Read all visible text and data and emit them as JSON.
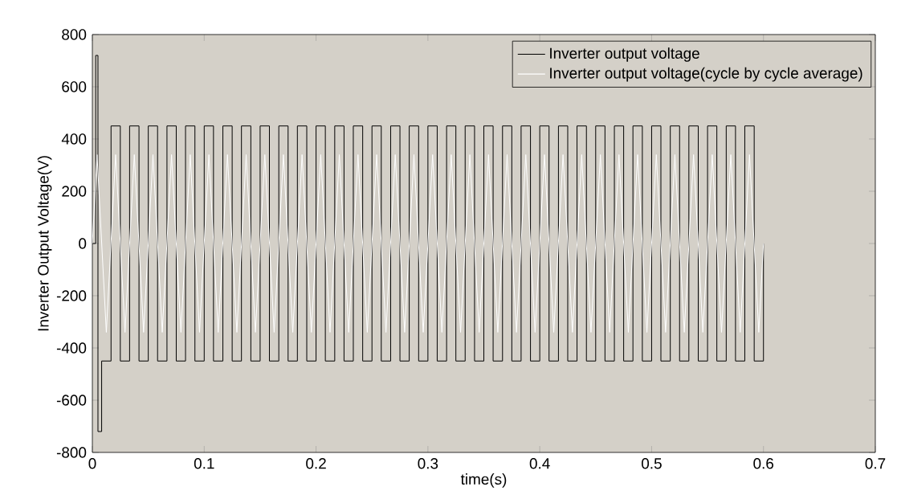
{
  "chart_data": {
    "type": "line",
    "xlabel": "time(s)",
    "ylabel": "Inverter Output Voltage(V)",
    "xlim": [
      0,
      0.7
    ],
    "ylim": [
      -800,
      800
    ],
    "xticks": [
      0,
      0.1,
      0.2,
      0.3,
      0.4,
      0.5,
      0.6,
      0.7
    ],
    "yticks": [
      -800,
      -600,
      -400,
      -200,
      0,
      200,
      400,
      600,
      800
    ],
    "grid": false,
    "legend": "top right",
    "marker": "none",
    "line_style": "solid",
    "series": [
      {
        "name": "Inverter output voltage",
        "type": "step",
        "color": "#000000",
        "x": [
          0,
          0.003,
          0.005,
          0.0083,
          0.0167,
          0.025,
          0.0333,
          0.0417,
          0.05,
          0.0583,
          0.0667,
          0.075,
          0.0833,
          0.0917,
          0.1,
          0.1083,
          0.1167,
          0.125,
          0.1333,
          0.1417,
          0.15,
          0.1583,
          0.1667,
          0.175,
          0.1833,
          0.1917,
          0.2,
          0.2083,
          0.2167,
          0.225,
          0.2333,
          0.2417,
          0.25,
          0.2583,
          0.2667,
          0.275,
          0.2833,
          0.2917,
          0.3,
          0.3083,
          0.3167,
          0.325,
          0.3333,
          0.3417,
          0.35,
          0.3583,
          0.3667,
          0.375,
          0.3833,
          0.3917,
          0.4,
          0.4083,
          0.4167,
          0.425,
          0.4333,
          0.4417,
          0.45,
          0.4583,
          0.4667,
          0.475,
          0.4833,
          0.4917,
          0.5,
          0.5083,
          0.5167,
          0.525,
          0.5333,
          0.5417,
          0.55,
          0.5583,
          0.5667,
          0.575,
          0.5833,
          0.5917,
          0.6
        ],
        "values": [
          0,
          720,
          -720,
          -450,
          450,
          -450,
          450,
          -450,
          450,
          -450,
          450,
          -450,
          450,
          -450,
          450,
          -450,
          450,
          -450,
          450,
          -450,
          450,
          -450,
          450,
          -450,
          450,
          -450,
          450,
          -450,
          450,
          -450,
          450,
          -450,
          450,
          -450,
          450,
          -450,
          450,
          -450,
          450,
          -450,
          450,
          -450,
          450,
          -450,
          450,
          -450,
          450,
          -450,
          450,
          -450,
          450,
          -450,
          450,
          -450,
          450,
          -450,
          450,
          -450,
          450,
          -450,
          450,
          -450,
          450,
          -450,
          450,
          -450,
          450,
          -450,
          450,
          -450,
          450,
          -450,
          450,
          -450,
          0
        ]
      },
      {
        "name": "Inverter output voltage(cycle by cycle average)",
        "color": "#ffffff",
        "x": [
          0,
          0.0042,
          0.0125,
          0.0208,
          0.0292,
          0.0375,
          0.0458,
          0.0542,
          0.0625,
          0.0708,
          0.0792,
          0.0875,
          0.0958,
          0.1042,
          0.1125,
          0.1208,
          0.1292,
          0.1375,
          0.1458,
          0.1542,
          0.1625,
          0.1708,
          0.1792,
          0.1875,
          0.1958,
          0.2042,
          0.2125,
          0.2208,
          0.2292,
          0.2375,
          0.2458,
          0.2542,
          0.2625,
          0.2708,
          0.2792,
          0.2875,
          0.2958,
          0.3042,
          0.3125,
          0.3208,
          0.3292,
          0.3375,
          0.3458,
          0.3542,
          0.3625,
          0.3708,
          0.3792,
          0.3875,
          0.3958,
          0.4042,
          0.4125,
          0.4208,
          0.4292,
          0.4375,
          0.4458,
          0.4542,
          0.4625,
          0.4708,
          0.4792,
          0.4875,
          0.4958,
          0.5042,
          0.5125,
          0.5208,
          0.5292,
          0.5375,
          0.5458,
          0.5542,
          0.5625,
          0.5708,
          0.5792,
          0.5875,
          0.5958,
          0.6
        ],
        "values": [
          0,
          340,
          -340,
          340,
          -340,
          340,
          -340,
          340,
          -340,
          340,
          -340,
          340,
          -340,
          340,
          -340,
          340,
          -340,
          340,
          -340,
          340,
          -340,
          340,
          -340,
          340,
          -340,
          340,
          -340,
          340,
          -340,
          340,
          -340,
          340,
          -340,
          340,
          -340,
          340,
          -340,
          340,
          -340,
          340,
          -340,
          340,
          -340,
          340,
          -340,
          340,
          -340,
          340,
          -340,
          340,
          -340,
          340,
          -340,
          340,
          -340,
          340,
          -340,
          340,
          -340,
          340,
          -340,
          340,
          -340,
          340,
          -340,
          340,
          -340,
          340,
          -340,
          340,
          -340,
          340,
          -340,
          0
        ]
      }
    ]
  }
}
